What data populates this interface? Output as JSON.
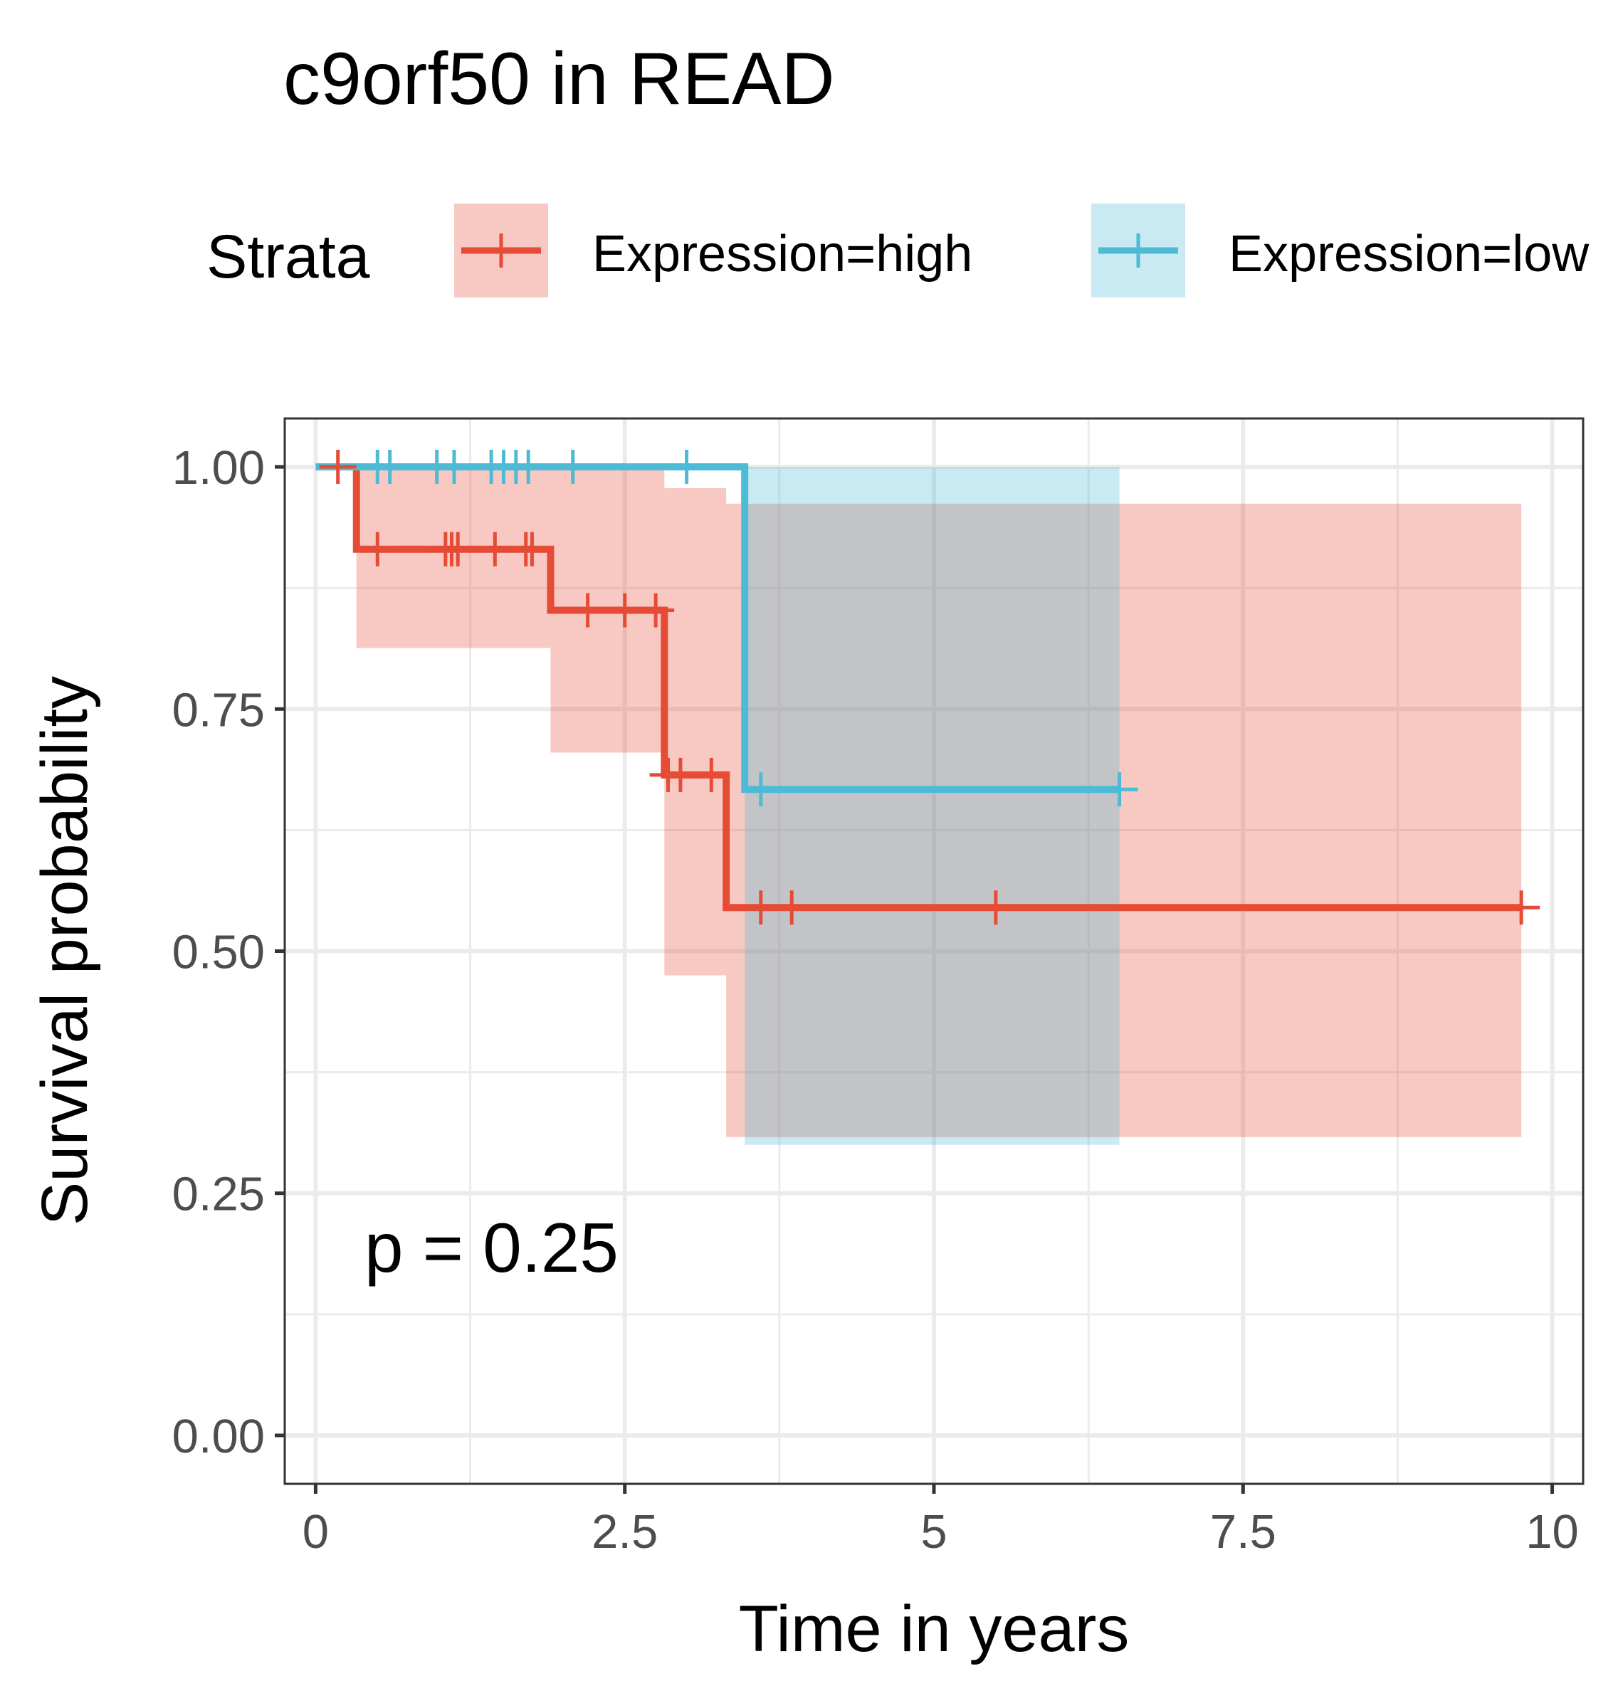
{
  "chart_data": {
    "type": "line",
    "subtype": "kaplan-meier step",
    "title": "c9orf50 in READ",
    "xlabel": "Time in years",
    "ylabel": "Survival probability",
    "xlim": [
      -0.25,
      10.25
    ],
    "ylim": [
      -0.05,
      1.05
    ],
    "x_ticks": [
      0,
      2.5,
      5,
      7.5,
      10
    ],
    "x_tick_labels": [
      "0",
      "2.5",
      "5",
      "7.5",
      "10"
    ],
    "y_ticks": [
      0,
      0.25,
      0.5,
      0.75,
      1.0
    ],
    "y_tick_labels": [
      "0.00",
      "0.25",
      "0.50",
      "0.75",
      "1.00"
    ],
    "grid": true,
    "legend": {
      "title": "Strata",
      "position": "top"
    },
    "annotation": "p = 0.25",
    "series": [
      {
        "name": "Expression=high",
        "color": "#E64B35",
        "steps": [
          {
            "x": 0,
            "y": 1.0
          },
          {
            "x": 0.33,
            "y": 0.915
          },
          {
            "x": 1.9,
            "y": 0.852
          },
          {
            "x": 2.82,
            "y": 0.682
          },
          {
            "x": 3.32,
            "y": 0.545
          },
          {
            "x": 9.75,
            "y": 0.545
          }
        ],
        "ci": [
          {
            "x0": 0,
            "x1": 0.33,
            "lo": 1.0,
            "hi": 1.0
          },
          {
            "x0": 0.33,
            "x1": 1.9,
            "lo": 0.813,
            "hi": 1.0
          },
          {
            "x0": 1.9,
            "x1": 2.82,
            "lo": 0.705,
            "hi": 1.0
          },
          {
            "x0": 2.82,
            "x1": 3.32,
            "lo": 0.475,
            "hi": 0.978
          },
          {
            "x0": 3.32,
            "x1": 9.75,
            "lo": 0.308,
            "hi": 0.962
          }
        ],
        "censor_x": [
          0.18,
          0.5,
          1.05,
          1.1,
          1.15,
          1.45,
          1.7,
          1.75,
          2.2,
          2.5,
          2.75,
          2.85,
          2.95,
          3.2,
          3.6,
          3.85,
          5.5,
          9.75
        ]
      },
      {
        "name": "Expression=low",
        "color": "#4DBBD5",
        "steps": [
          {
            "x": 0,
            "y": 1.0
          },
          {
            "x": 3.47,
            "y": 0.667
          },
          {
            "x": 6.5,
            "y": 0.667
          }
        ],
        "ci": [
          {
            "x0": 0,
            "x1": 3.47,
            "lo": 1.0,
            "hi": 1.0
          },
          {
            "x0": 3.47,
            "x1": 6.5,
            "lo": 0.3,
            "hi": 1.0
          }
        ],
        "censor_x": [
          0.5,
          0.6,
          0.98,
          1.12,
          1.42,
          1.52,
          1.62,
          1.72,
          2.08,
          3.0,
          3.6,
          6.5
        ]
      }
    ]
  }
}
